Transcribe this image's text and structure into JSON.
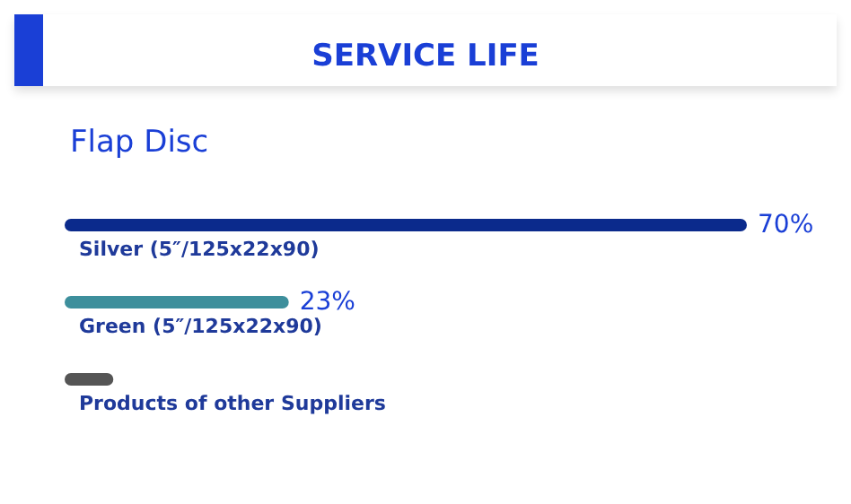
{
  "chart_data": {
    "type": "bar",
    "orientation": "horizontal",
    "title": "SERVICE LIFE",
    "subtitle": "Flap Disc",
    "categories": [
      "Silver (5″/125x22x90)",
      "Green (5″/125x22x90)",
      "Products of other Suppliers"
    ],
    "values": [
      70,
      23,
      5
    ],
    "colors": [
      "#0b2a8c",
      "#3d8f9c",
      "#555555"
    ],
    "value_labels": [
      "70%",
      "23%",
      null
    ]
  }
}
